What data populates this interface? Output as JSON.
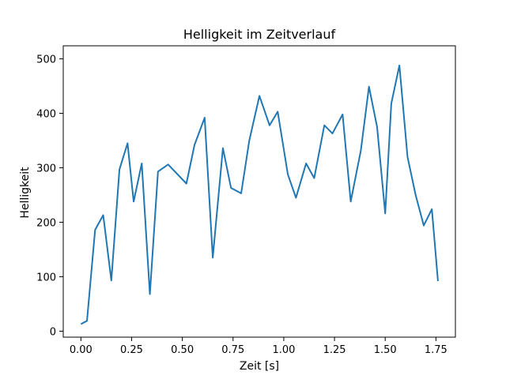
{
  "chart_data": {
    "type": "line",
    "title": "Helligkeit im Zeitverlauf",
    "xlabel": "Zeit [s]",
    "ylabel": "Helligkeit",
    "xlim": [
      -0.087,
      1.846
    ],
    "ylim": [
      -11,
      524
    ],
    "xticks": [
      0.0,
      0.25,
      0.5,
      0.75,
      1.0,
      1.25,
      1.5,
      1.75
    ],
    "xtick_labels": [
      "0.00",
      "0.25",
      "0.50",
      "0.75",
      "1.00",
      "1.25",
      "1.50",
      "1.75"
    ],
    "yticks": [
      0,
      100,
      200,
      300,
      400,
      500
    ],
    "ytick_labels": [
      "0",
      "100",
      "200",
      "300",
      "400",
      "500"
    ],
    "grid": false,
    "series": [
      {
        "color": "#1f77b4",
        "x": [
          0.0,
          0.03,
          0.07,
          0.11,
          0.15,
          0.19,
          0.23,
          0.26,
          0.3,
          0.34,
          0.38,
          0.43,
          0.52,
          0.56,
          0.61,
          0.65,
          0.7,
          0.74,
          0.79,
          0.83,
          0.88,
          0.93,
          0.97,
          1.02,
          1.06,
          1.11,
          1.15,
          1.2,
          1.24,
          1.29,
          1.33,
          1.38,
          1.42,
          1.46,
          1.5,
          1.53,
          1.57,
          1.61,
          1.65,
          1.69,
          1.73,
          1.76
        ],
        "y": [
          13,
          19,
          186,
          213,
          93,
          297,
          345,
          238,
          308,
          68,
          293,
          306,
          271,
          342,
          392,
          135,
          336,
          263,
          253,
          350,
          432,
          378,
          403,
          288,
          245,
          308,
          281,
          378,
          363,
          398,
          238,
          332,
          449,
          375,
          216,
          418,
          488,
          320,
          250,
          194,
          224,
          92
        ]
      }
    ]
  }
}
